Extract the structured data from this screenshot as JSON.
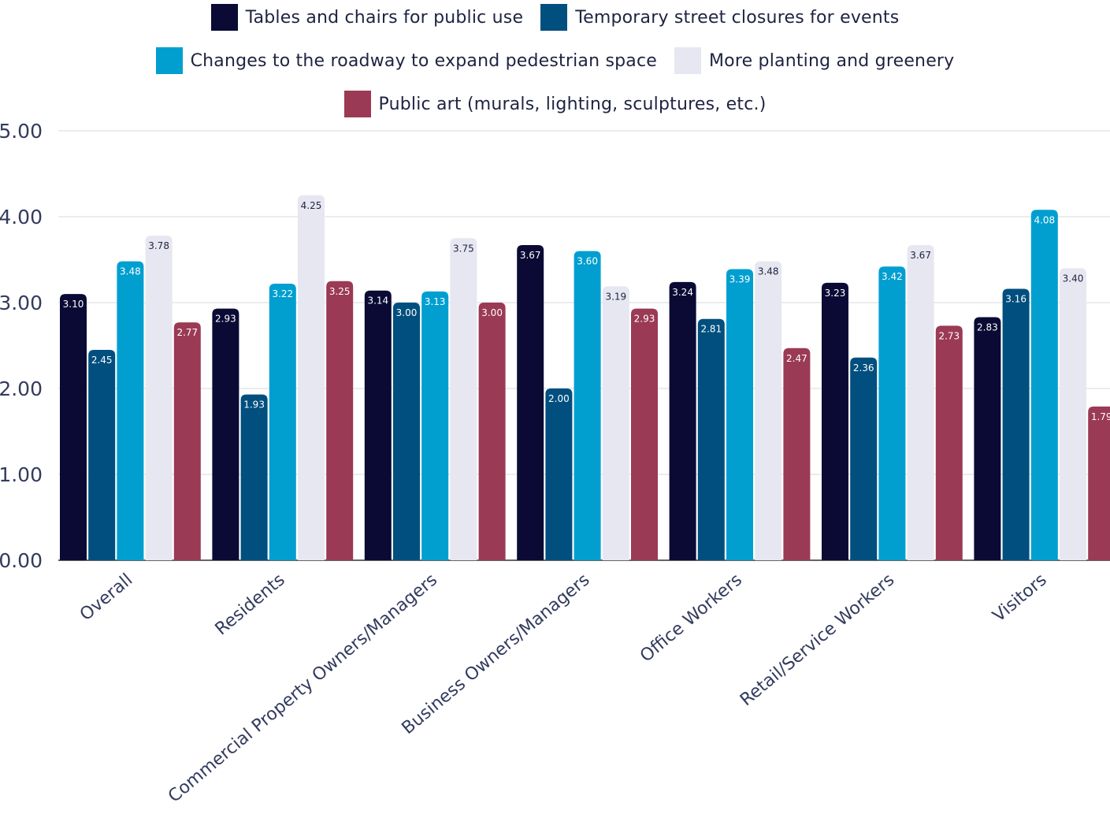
{
  "chart_data": {
    "type": "bar",
    "categories": [
      "Overall",
      "Residents",
      "Commercial Property Owners/Managers",
      "Business Owners/Managers",
      "Office Workers",
      "Retail/Service Workers",
      "Visitors"
    ],
    "series": [
      {
        "name": "Tables and chairs for public use",
        "color": "#0a0a35",
        "label_color": "#ffffff",
        "values": [
          3.1,
          2.93,
          3.14,
          3.67,
          3.24,
          3.23,
          2.83
        ]
      },
      {
        "name": "Temporary street closures for events",
        "color": "#004f7e",
        "label_color": "#ffffff",
        "values": [
          2.45,
          1.93,
          3.0,
          2.0,
          2.81,
          2.36,
          3.16
        ]
      },
      {
        "name": "Changes to the roadway to expand pedestrian space",
        "color": "#009fd0",
        "label_color": "#ffffff",
        "values": [
          3.48,
          3.22,
          3.13,
          3.6,
          3.39,
          3.42,
          4.08
        ]
      },
      {
        "name": "More planting and greenery",
        "color": "#e7e7f1",
        "label_color": "#1e2340",
        "values": [
          3.78,
          4.25,
          3.75,
          3.19,
          3.48,
          3.67,
          3.4
        ]
      },
      {
        "name": "Public art (murals, lighting, sculptures, etc.)",
        "color": "#9b3a55",
        "label_color": "#ffffff",
        "values": [
          2.77,
          3.25,
          3.0,
          2.93,
          2.47,
          2.73,
          1.79
        ]
      }
    ],
    "value_labels": [
      [
        "3.10",
        "2.93",
        "3.14",
        "3.67",
        "3.24",
        "3.23",
        "2.83"
      ],
      [
        "2.45",
        "1.93",
        "3.00",
        "2.00",
        "2.81",
        "2.36",
        "3.16"
      ],
      [
        "3.48",
        "3.22",
        "3.13",
        "3.60",
        "3.39",
        "3.42",
        "4.08"
      ],
      [
        "3.78",
        "4.25",
        "3.75",
        "3.19",
        "3.48",
        "3.67",
        "3.40"
      ],
      [
        "2.77",
        "3.25",
        "3.00",
        "2.93",
        "2.47",
        "2.73",
        "1.79"
      ]
    ],
    "ylim": [
      0,
      5
    ],
    "yticks": [
      "0.00",
      "1.00",
      "2.00",
      "3.00",
      "4.00",
      "5.00"
    ],
    "grid": true,
    "legend_position": "top-center"
  }
}
